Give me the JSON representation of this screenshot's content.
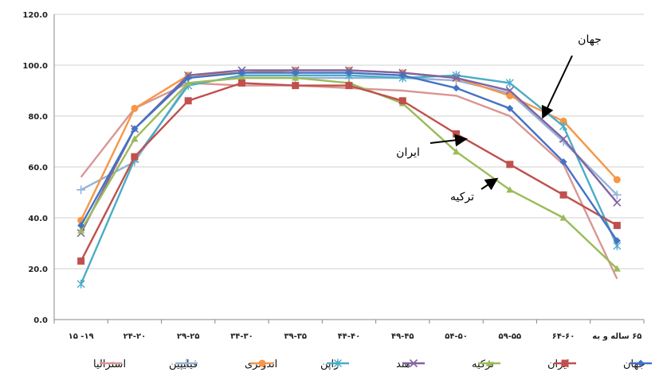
{
  "chart_data": {
    "type": "line",
    "categories": [
      "۱۹- ۱۵",
      "۲۴-۲۰",
      "۲۹-۲۵",
      "۳۴-۳۰",
      "۳۹-۳۵",
      "۴۴-۴۰",
      "۴۹-۴۵",
      "۵۴-۵۰",
      "۵۹-۵۵",
      "۶۴-۶۰",
      "۶۵ ساله و به"
    ],
    "y_ticks": [
      "0.0",
      "20.0",
      "40.0",
      "60.0",
      "80.0",
      "100.0",
      "120.0"
    ],
    "ylim": [
      0,
      120
    ],
    "grid": "horizontal",
    "legend_position": "bottom",
    "series": [
      {
        "name": "جهان",
        "color": "#4472C4",
        "marker": "diamond",
        "values": [
          37,
          75,
          95,
          97,
          97,
          97,
          96,
          91,
          83,
          62,
          31
        ]
      },
      {
        "name": "ایران",
        "color": "#C0504D",
        "marker": "square",
        "values": [
          23,
          64,
          86,
          93,
          92,
          92,
          86,
          73,
          61,
          49,
          37
        ]
      },
      {
        "name": "ترکیه",
        "color": "#9BBB59",
        "marker": "triangle",
        "values": [
          35,
          71,
          93,
          95,
          95,
          93,
          85,
          66,
          51,
          40,
          20
        ]
      },
      {
        "name": "هند",
        "color": "#8064A2",
        "marker": "x",
        "values": [
          34,
          75,
          96,
          98,
          98,
          98,
          97,
          95,
          90,
          71,
          46
        ]
      },
      {
        "name": "ژاپن",
        "color": "#4BACC6",
        "marker": "star",
        "values": [
          14,
          63,
          92,
          96,
          96,
          96,
          95,
          96,
          93,
          76,
          29
        ]
      },
      {
        "name": "اندونزی",
        "color": "#F79646",
        "marker": "circle",
        "values": [
          39,
          83,
          96,
          97,
          98,
          98,
          97,
          95,
          88,
          78,
          55
        ]
      },
      {
        "name": "فیلیپین",
        "color": "#95B3D7",
        "marker": "plus",
        "values": [
          51,
          62,
          93,
          95,
          95,
          95,
          95,
          94,
          89,
          70,
          49
        ]
      },
      {
        "name": "استرالیا",
        "color": "#D99694",
        "marker": "none",
        "values": [
          56,
          83,
          93,
          92,
          92,
          91,
          90,
          88,
          80,
          61,
          16
        ]
      }
    ],
    "annotations": [
      {
        "text": "جهان",
        "points_to": "جهان"
      },
      {
        "text": "ایران",
        "points_to": "ایران"
      },
      {
        "text": "ترکیه",
        "points_to": "ترکیه"
      }
    ]
  }
}
